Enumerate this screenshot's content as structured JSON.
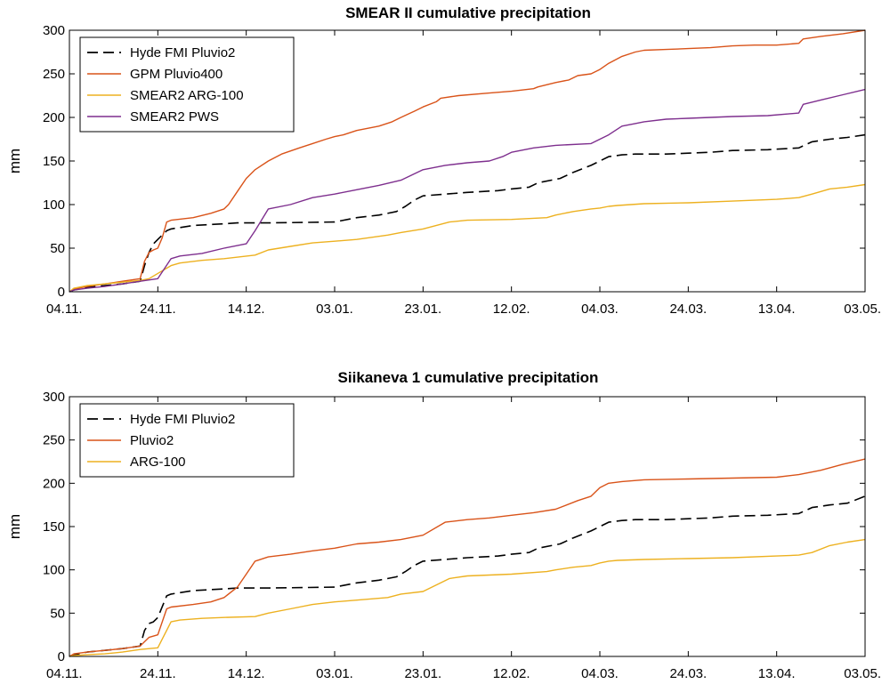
{
  "figure": {
    "background": "#ffffff",
    "axis_color": "#000000"
  },
  "chart_data": [
    {
      "type": "line",
      "title": "SMEAR II cumulative precipitation",
      "xlabel": "",
      "ylabel": "mm",
      "xlim": [
        0,
        180
      ],
      "ylim": [
        0,
        300
      ],
      "x_tick_labels": [
        "04.11.",
        "24.11.",
        "14.12.",
        "03.01.",
        "23.01.",
        "12.02.",
        "04.03.",
        "24.03.",
        "13.04.",
        "03.05."
      ],
      "x_tick_values": [
        0,
        20,
        40,
        60,
        80,
        100,
        120,
        140,
        160,
        180
      ],
      "y_ticks": [
        0,
        50,
        100,
        150,
        200,
        250,
        300
      ],
      "grid": false,
      "legend_position": "top-left",
      "series": [
        {
          "name": "Hyde FMI Pluvio2",
          "color": "#000000",
          "dash": "12,6",
          "x": [
            0,
            1,
            4,
            8,
            12,
            16,
            17,
            18,
            19,
            20,
            22,
            23,
            28,
            35,
            38,
            45,
            60,
            65,
            70,
            74,
            76,
            78,
            80,
            90,
            97,
            100,
            104,
            106,
            111,
            114,
            118,
            122,
            125,
            128,
            135,
            140,
            145,
            150,
            158,
            165,
            168,
            172,
            176,
            180
          ],
          "y": [
            0,
            2,
            5,
            7,
            9,
            12,
            30,
            45,
            55,
            60,
            70,
            72,
            76,
            78,
            79,
            79,
            80,
            85,
            88,
            92,
            98,
            105,
            110,
            114,
            116,
            118,
            120,
            125,
            130,
            137,
            145,
            155,
            157,
            158,
            158,
            159,
            160,
            162,
            163,
            165,
            172,
            175,
            177,
            180
          ]
        },
        {
          "name": "GPM Pluvio400",
          "color": "#d95319",
          "dash": "",
          "x": [
            0,
            1,
            4,
            8,
            12,
            16,
            17,
            18,
            19,
            20,
            21,
            22,
            23,
            28,
            32,
            35,
            36,
            38,
            40,
            42,
            45,
            48,
            52,
            55,
            58,
            60,
            62,
            65,
            70,
            73,
            75,
            78,
            80,
            83,
            84,
            88,
            95,
            100,
            105,
            106,
            110,
            113,
            115,
            118,
            120,
            122,
            125,
            128,
            130,
            135,
            140,
            145,
            150,
            155,
            160,
            165,
            166,
            170,
            175,
            180
          ],
          "y": [
            0,
            3,
            6,
            9,
            12,
            15,
            35,
            45,
            48,
            50,
            62,
            80,
            82,
            85,
            90,
            95,
            100,
            115,
            130,
            140,
            150,
            158,
            165,
            170,
            175,
            178,
            180,
            185,
            190,
            195,
            200,
            207,
            212,
            218,
            222,
            225,
            228,
            230,
            233,
            235,
            240,
            243,
            248,
            250,
            255,
            262,
            270,
            275,
            277,
            278,
            279,
            280,
            282,
            283,
            283,
            285,
            290,
            293,
            296,
            300
          ]
        },
        {
          "name": "SMEAR2 ARG-100",
          "color": "#edb120",
          "dash": "",
          "x": [
            0,
            1,
            4,
            8,
            12,
            16,
            18,
            23,
            25,
            30,
            35,
            42,
            45,
            50,
            55,
            60,
            65,
            72,
            75,
            80,
            86,
            90,
            100,
            108,
            110,
            114,
            118,
            120,
            122,
            124,
            130,
            140,
            150,
            160,
            165,
            168,
            172,
            176,
            180
          ],
          "y": [
            0,
            4,
            7,
            9,
            11,
            13,
            15,
            30,
            33,
            36,
            38,
            42,
            48,
            52,
            56,
            58,
            60,
            65,
            68,
            72,
            80,
            82,
            83,
            85,
            88,
            92,
            95,
            96,
            98,
            99,
            101,
            102,
            104,
            106,
            108,
            112,
            118,
            120,
            123
          ]
        },
        {
          "name": "SMEAR2 PWS",
          "color": "#7e2f8e",
          "dash": "",
          "x": [
            0,
            1,
            4,
            8,
            12,
            16,
            20,
            23,
            25,
            30,
            35,
            40,
            42,
            45,
            50,
            55,
            60,
            65,
            70,
            75,
            80,
            85,
            90,
            95,
            98,
            100,
            105,
            110,
            118,
            120,
            122,
            125,
            128,
            130,
            135,
            140,
            145,
            150,
            158,
            165,
            166,
            170,
            175,
            180
          ],
          "y": [
            0,
            2,
            4,
            6,
            9,
            12,
            15,
            38,
            41,
            44,
            50,
            55,
            70,
            95,
            100,
            108,
            112,
            117,
            122,
            128,
            140,
            145,
            148,
            150,
            155,
            160,
            165,
            168,
            170,
            175,
            180,
            190,
            193,
            195,
            198,
            199,
            200,
            201,
            202,
            205,
            215,
            220,
            226,
            232
          ]
        }
      ]
    },
    {
      "type": "line",
      "title": "Siikaneva 1 cumulative precipitation",
      "xlabel": "",
      "ylabel": "mm",
      "xlim": [
        0,
        180
      ],
      "ylim": [
        0,
        300
      ],
      "x_tick_labels": [
        "04.11.",
        "24.11.",
        "14.12.",
        "03.01.",
        "23.01.",
        "12.02.",
        "04.03.",
        "24.03.",
        "13.04.",
        "03.05."
      ],
      "x_tick_values": [
        0,
        20,
        40,
        60,
        80,
        100,
        120,
        140,
        160,
        180
      ],
      "y_ticks": [
        0,
        50,
        100,
        150,
        200,
        250,
        300
      ],
      "grid": false,
      "legend_position": "top-left",
      "series": [
        {
          "name": "Hyde FMI Pluvio2",
          "color": "#000000",
          "dash": "12,6",
          "x": [
            0,
            1,
            4,
            8,
            12,
            16,
            17,
            18,
            19,
            20,
            22,
            23,
            28,
            35,
            38,
            45,
            60,
            65,
            70,
            74,
            76,
            78,
            80,
            90,
            97,
            100,
            104,
            106,
            111,
            114,
            118,
            122,
            125,
            128,
            135,
            140,
            145,
            150,
            158,
            165,
            168,
            172,
            176,
            180
          ],
          "y": [
            0,
            2,
            5,
            7,
            9,
            12,
            30,
            38,
            40,
            45,
            70,
            72,
            76,
            78,
            79,
            79,
            80,
            85,
            88,
            92,
            98,
            105,
            110,
            114,
            116,
            118,
            120,
            125,
            130,
            137,
            145,
            155,
            157,
            158,
            158,
            159,
            160,
            162,
            163,
            165,
            172,
            175,
            177,
            185
          ]
        },
        {
          "name": "Pluvio2",
          "color": "#d95319",
          "dash": "",
          "x": [
            0,
            1,
            4,
            8,
            12,
            16,
            18,
            20,
            22,
            23,
            28,
            32,
            35,
            38,
            40,
            42,
            45,
            50,
            55,
            60,
            65,
            70,
            75,
            80,
            85,
            90,
            95,
            100,
            105,
            110,
            115,
            118,
            120,
            122,
            125,
            130,
            140,
            150,
            160,
            165,
            170,
            175,
            180
          ],
          "y": [
            0,
            3,
            5,
            7,
            9,
            12,
            22,
            25,
            55,
            57,
            60,
            63,
            68,
            80,
            95,
            110,
            115,
            118,
            122,
            125,
            130,
            132,
            135,
            140,
            155,
            158,
            160,
            163,
            166,
            170,
            180,
            185,
            195,
            200,
            202,
            204,
            205,
            206,
            207,
            210,
            215,
            222,
            228
          ]
        },
        {
          "name": "ARG-100",
          "color": "#edb120",
          "dash": "",
          "x": [
            0,
            1,
            4,
            8,
            12,
            16,
            20,
            23,
            25,
            30,
            35,
            42,
            45,
            50,
            55,
            60,
            65,
            72,
            75,
            80,
            86,
            90,
            100,
            108,
            110,
            114,
            118,
            120,
            122,
            124,
            130,
            140,
            150,
            160,
            165,
            168,
            172,
            176,
            180
          ],
          "y": [
            0,
            1,
            2,
            3,
            5,
            8,
            10,
            40,
            42,
            44,
            45,
            46,
            50,
            55,
            60,
            63,
            65,
            68,
            72,
            75,
            90,
            93,
            95,
            98,
            100,
            103,
            105,
            108,
            110,
            111,
            112,
            113,
            114,
            116,
            117,
            120,
            128,
            132,
            135
          ]
        }
      ]
    }
  ]
}
